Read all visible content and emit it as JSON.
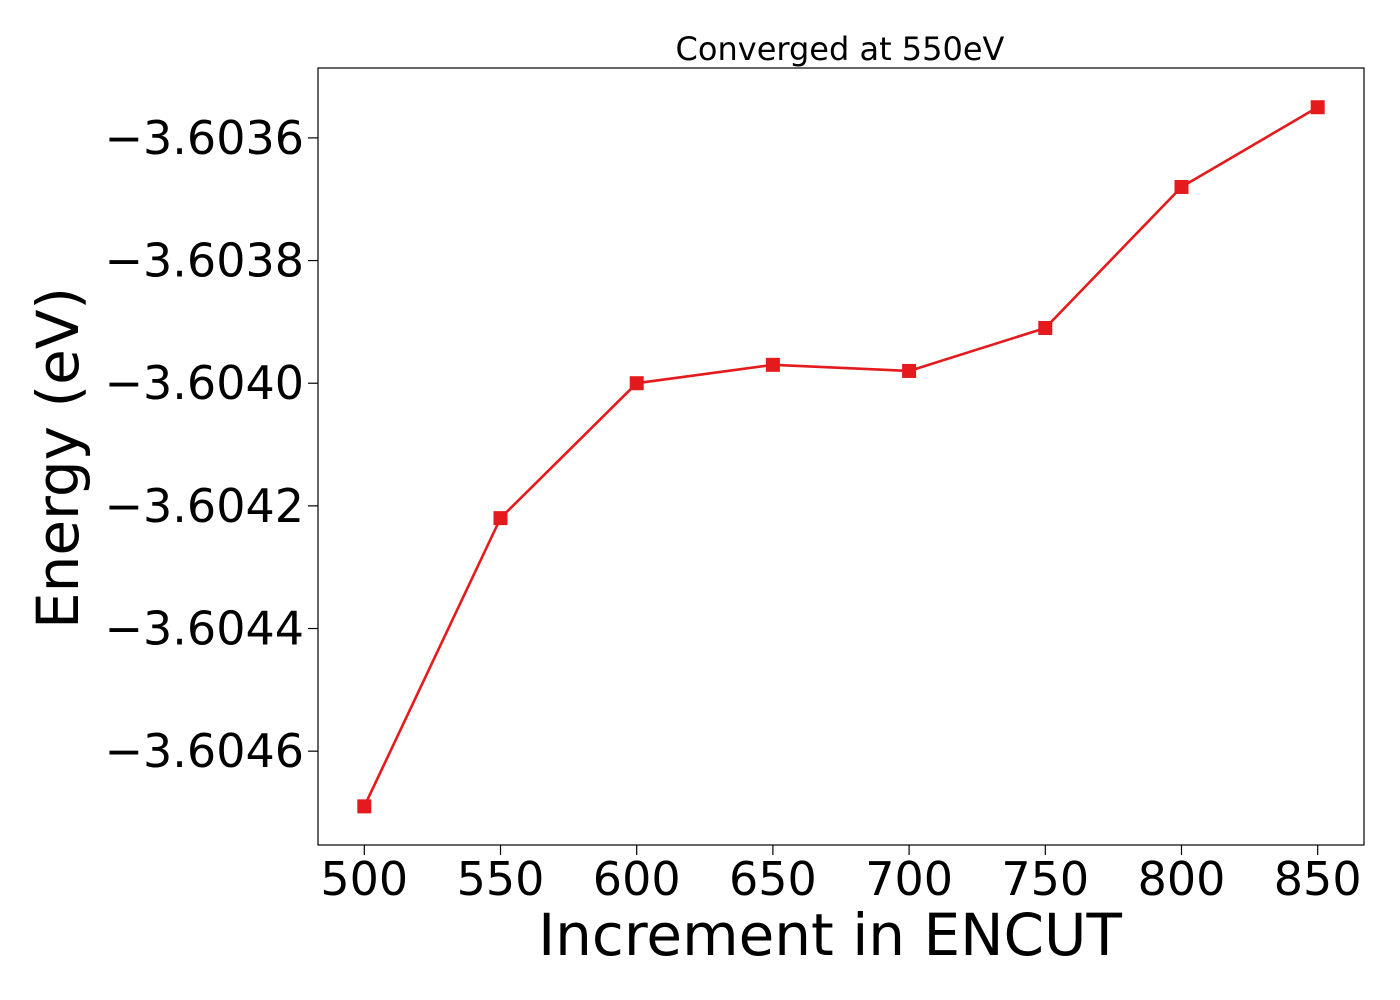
{
  "chart_data": {
    "type": "line",
    "title": "Converged at 550eV",
    "xlabel": "Increment in ENCUT",
    "ylabel": "Energy (eV)",
    "x": [
      500,
      550,
      600,
      650,
      700,
      750,
      800,
      850
    ],
    "series": [
      {
        "values": [
          -3.60469,
          -3.60422,
          -3.604,
          -3.60397,
          -3.60398,
          -3.60391,
          -3.60368,
          -3.60355
        ],
        "color": "#e41a1c",
        "marker": "square"
      }
    ],
    "xticks": [
      500,
      550,
      600,
      650,
      700,
      750,
      800,
      850
    ],
    "xtick_labels": [
      "500",
      "550",
      "600",
      "650",
      "700",
      "750",
      "800",
      "850"
    ],
    "yticks": [
      -3.6036,
      -3.6038,
      -3.604,
      -3.6042,
      -3.6044,
      -3.6046
    ],
    "ytick_labels": [
      "−3.6036",
      "−3.6038",
      "−3.6040",
      "−3.6042",
      "−3.6044",
      "−3.6046"
    ],
    "xlim": [
      483,
      867
    ],
    "ylim": [
      -3.604753,
      -3.603486
    ],
    "grid": false,
    "legend": "none"
  }
}
